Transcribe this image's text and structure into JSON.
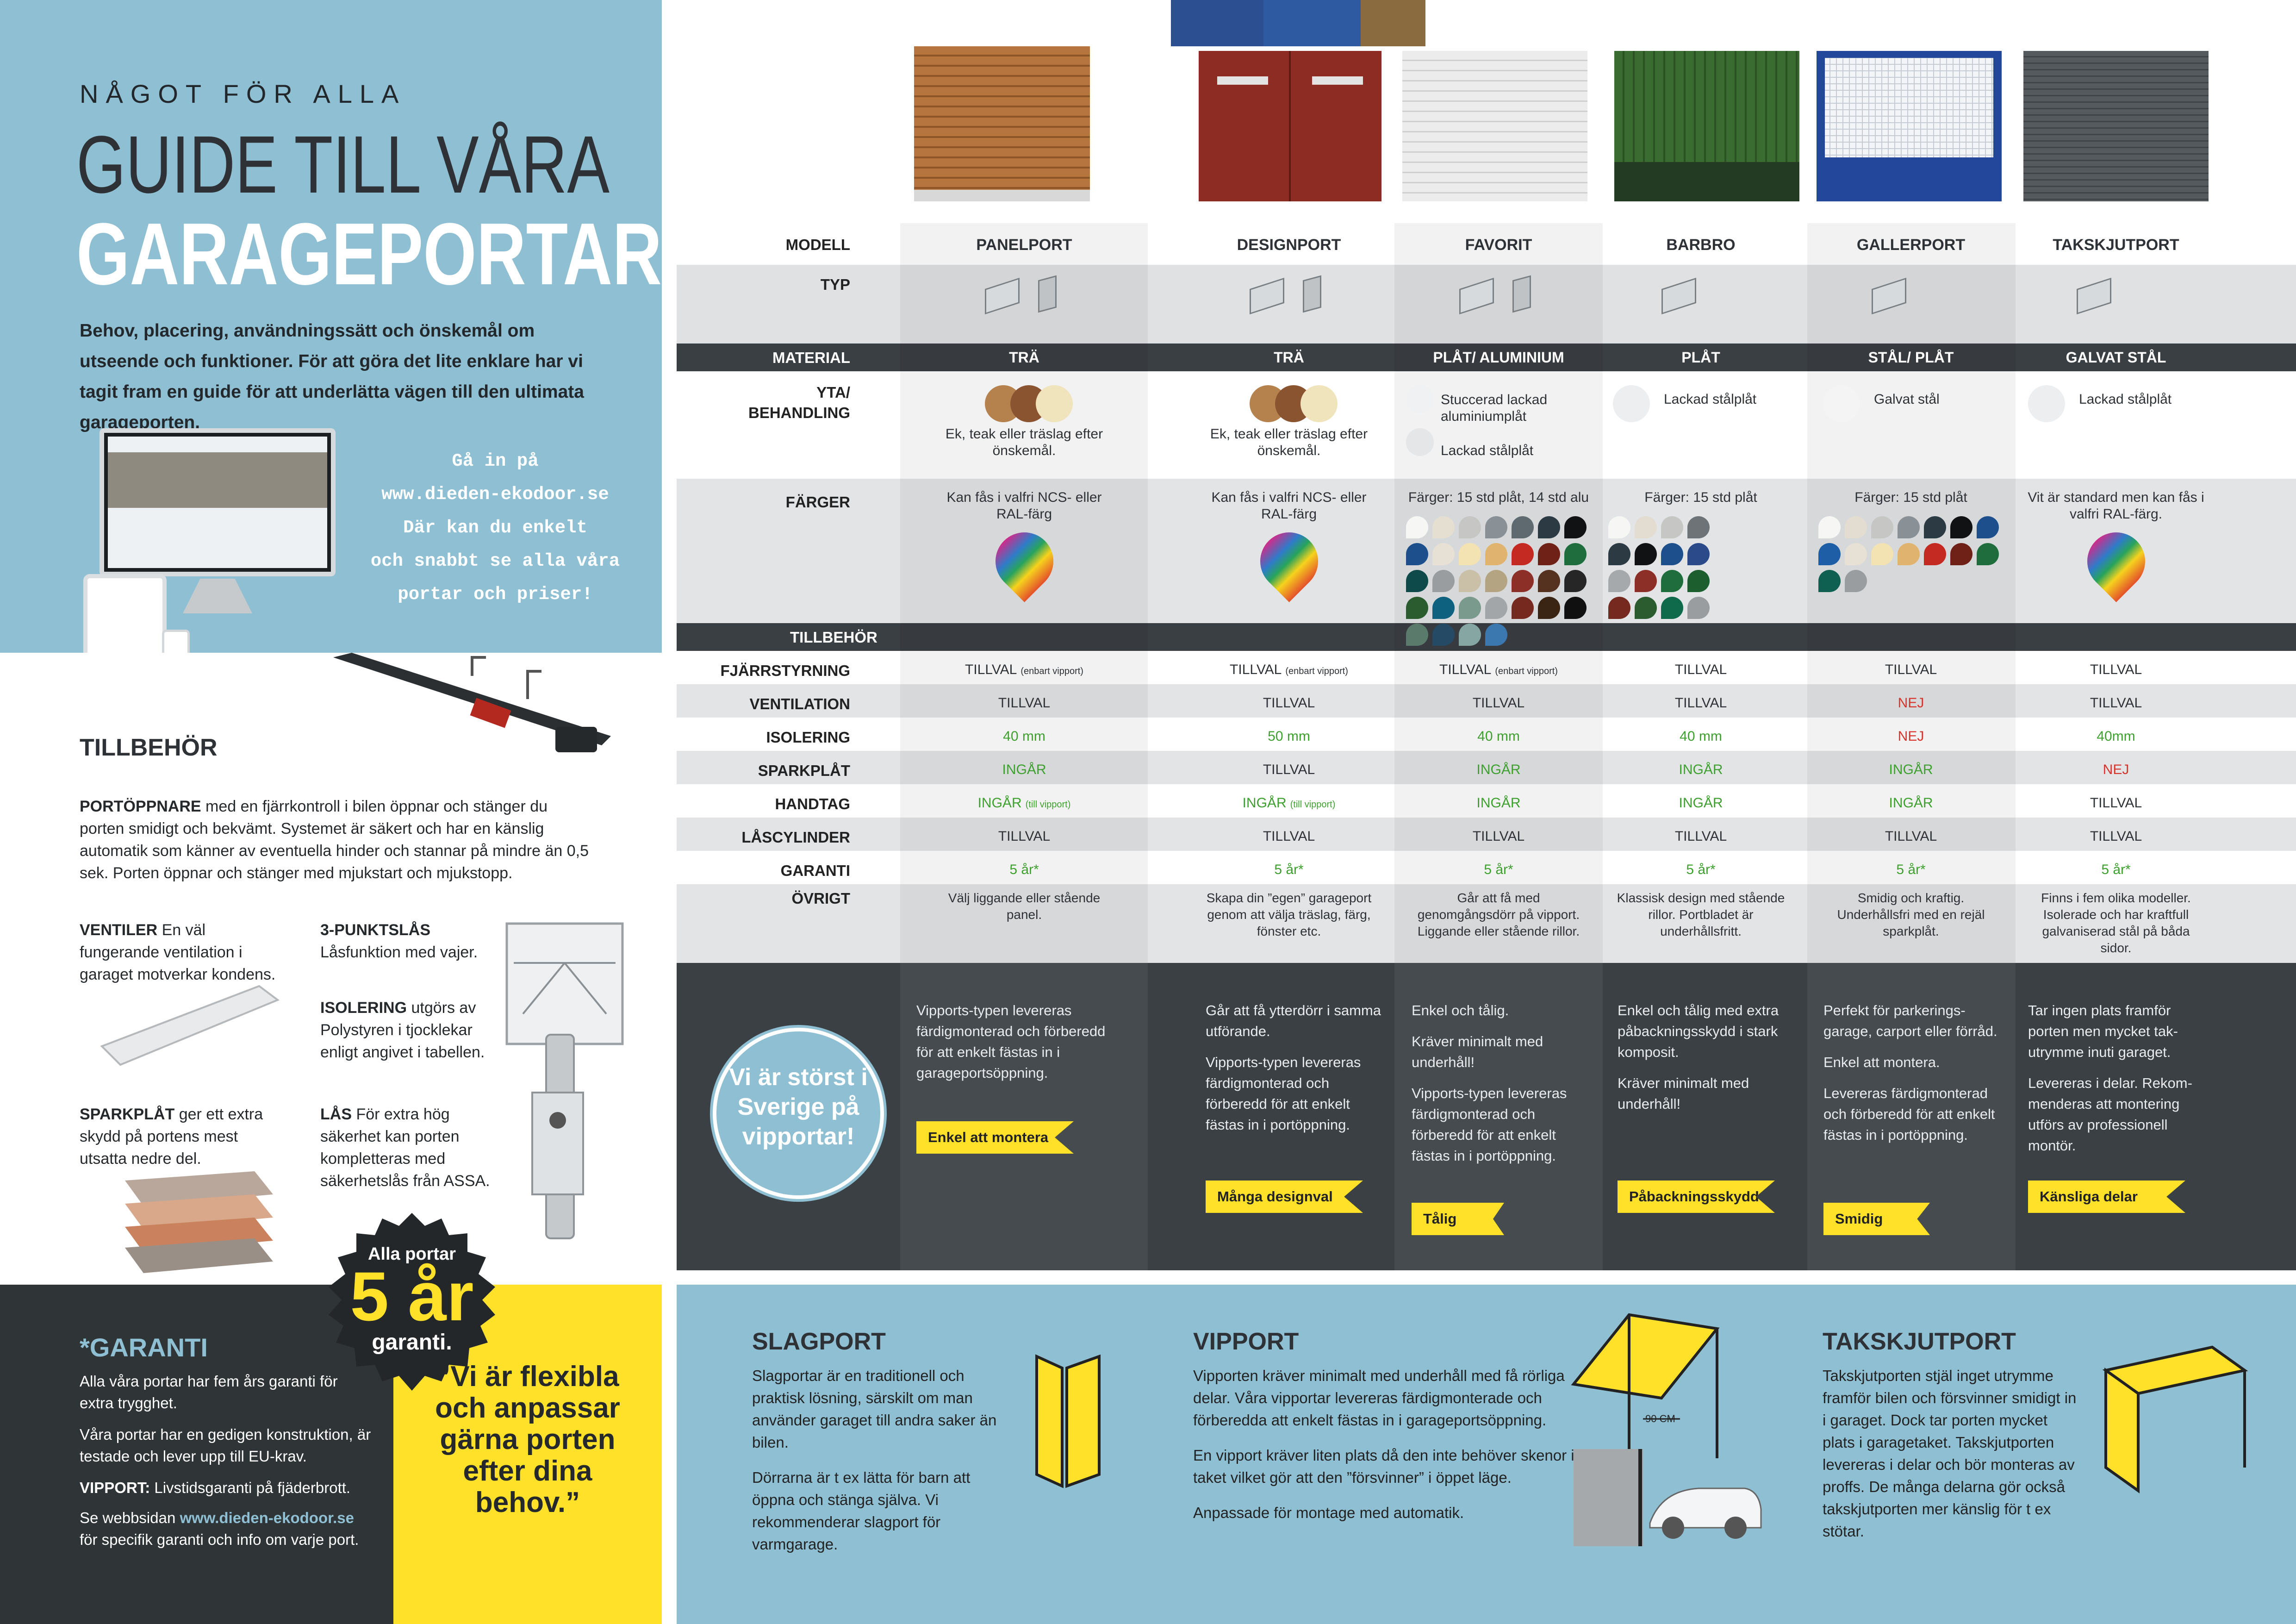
{
  "header": {
    "kicker": "NÅGOT FÖR ALLA",
    "title_line1": "GUIDE TILL VÅRA",
    "title_line2": "GARAGEPORTAR",
    "intro": "Behov, placering, användningssätt och önskemål om utseende och funktioner. För att göra det lite enklare har vi tagit fram en guide för att underlätta vägen till den ultimata garageporten."
  },
  "web_promo": {
    "line1": "Gå in på",
    "line2": "www.dieden-ekodoor.se",
    "line3": "Där kan du enkelt",
    "line4": "och snabbt se alla våra",
    "line5": "portar och priser!"
  },
  "accessories": {
    "heading": "TILLBEHÖR",
    "opener_bold": "PORTÖPPNARE",
    "opener_text": " med en fjärrkontroll i bilen öppnar och stänger du porten smidigt och bekvämt. Systemet är säkert och har en känslig automatik som känner av eventuella hinder och stannar på mindre än 0,5 sek. Porten öppnar och stänger med mjukstart och mjukstopp.",
    "vent_bold": "VENTILER",
    "vent_text": " En väl fungerande ventilation i garaget motverkar kondens.",
    "lock3_bold": "3-PUNKTSLÅS",
    "lock3_text": "Låsfunktion med vajer.",
    "insul_bold": "ISOLERING",
    "insul_text": " utgörs av Polystyren i tjocklekar enligt angivet i tabellen.",
    "kick_bold": "SPARKPLÅT",
    "kick_text": " ger ett extra skydd på portens mest utsatta nedre del.",
    "lock_bold": "LÅS",
    "lock_text": " För extra hög säkerhet kan porten kompletteras med säkerhetslås från ASSA."
  },
  "badge": {
    "line1": "Alla portar",
    "line2": "5 år",
    "line3": "garanti."
  },
  "warranty": {
    "heading": "*GARANTI",
    "p1": "Alla våra portar har fem års garanti för extra trygghet.",
    "p2": "Våra portar har en gedigen konstruktion, är testade och lever upp till EU-krav.",
    "p3_bold": "VIPPORT:",
    "p3": " Livstidsgaranti på fjäderbrott.",
    "p4a": "Se webbsidan ",
    "p4_link": "www.dieden-ekodoor.se",
    "p4b": " för specifik garanti och info om varje port."
  },
  "quote": "”Vi är flexibla och anpassar gärna porten efter dina behov.”",
  "table": {
    "labels": {
      "model": "MODELL",
      "type": "TYP",
      "material": "MATERIAL",
      "surface1": "YTA/",
      "surface2": "BEHANDLING",
      "colors": "FÄRGER",
      "accessories": "TILLBEHÖR",
      "remote": "FJÄRRSTYRNING",
      "ventilation": "VENTILATION",
      "insulation": "ISOLERING",
      "kickplate": "SPARKPLÅT",
      "handle": "HANDTAG",
      "cylinder": "LÅSCYLINDER",
      "warranty": "GARANTI",
      "other": "ÖVRIGT"
    },
    "columns": [
      {
        "model": "PANELPORT",
        "material": "TRÄ",
        "surface": "Ek, teak eller träslag efter önskemål.",
        "colors": "Kan fås i valfri NCS- eller RAL-färg",
        "remote": "TILLVAL",
        "remote_note": "(enbart vipport)",
        "ventilation": "TILLVAL",
        "insulation": "40 mm",
        "kickplate": "INGÅR",
        "handle": "INGÅR",
        "handle_note": "(till vipport)",
        "cylinder": "TILLVAL",
        "warranty": "5 år*",
        "other": "Välj liggande eller stående panel.",
        "desc": [
          "Vipports-typen levereras färdigmonterad och förberedd för att enkelt fästas in i garageportsöppning."
        ],
        "tag": "Enkel att montera"
      },
      {
        "model": "DESIGNPORT",
        "material": "TRÄ",
        "surface": "Ek, teak eller träslag efter önskemål.",
        "colors": "Kan fås i valfri NCS- eller RAL-färg",
        "remote": "TILLVAL",
        "remote_note": "(enbart vipport)",
        "ventilation": "TILLVAL",
        "insulation": "50 mm",
        "kickplate": "TILLVAL",
        "handle": "INGÅR",
        "handle_note": "(till vipport)",
        "cylinder": "TILLVAL",
        "warranty": "5 år*",
        "other": "Skapa din ”egen” garageport genom att välja träslag, färg, fönster etc.",
        "desc": [
          "Går att få ytterdörr i samma utförande.",
          "Vipports-typen levereras färdigmonterad och förberedd för att enkelt fästas in i portöppning."
        ],
        "tag": "Många designval"
      },
      {
        "model": "FAVORIT",
        "material": "PLÅT/ ALUMINIUM",
        "surface": "Stuccerad lackad aluminiumplåt",
        "surface2": "Lackad stålplåt",
        "colors": "Färger: 15 std plåt, 14 std alu",
        "remote": "TILLVAL",
        "remote_note": "(enbart vipport)",
        "ventilation": "TILLVAL",
        "insulation": "40 mm",
        "kickplate": "INGÅR",
        "handle": "INGÅR",
        "handle_note": "",
        "cylinder": "TILLVAL",
        "warranty": "5 år*",
        "other": "Går att få med genomgångsdörr på vipport. Liggande eller stående rillor.",
        "desc": [
          "Enkel och tålig.",
          "Kräver minimalt med underhåll!",
          "Vipports-typen levereras färdigmonterad och förberedd för att enkelt fästas in i portöppning."
        ],
        "tag": "Tålig"
      },
      {
        "model": "BARBRO",
        "material": "PLÅT",
        "surface": "Lackad stålplåt",
        "colors": "Färger: 15 std plåt",
        "remote": "TILLVAL",
        "remote_note": "",
        "ventilation": "TILLVAL",
        "insulation": "40 mm",
        "kickplate": "INGÅR",
        "handle": "INGÅR",
        "handle_note": "",
        "cylinder": "TILLVAL",
        "warranty": "5 år*",
        "other": "Klassisk design med stående rillor. Portbladet är underhållsfritt.",
        "desc": [
          "Enkel och tålig med extra påbackningsskydd i stark komposit.",
          "Kräver minimalt med underhåll!"
        ],
        "tag": "Påbackningsskydd"
      },
      {
        "model": "GALLERPORT",
        "material": "STÅL/ PLÅT",
        "surface": "Galvat stål",
        "colors": "Färger: 15 std plåt",
        "remote": "TILLVAL",
        "remote_note": "",
        "ventilation": "NEJ",
        "insulation": "NEJ",
        "kickplate": "INGÅR",
        "handle": "INGÅR",
        "handle_note": "",
        "cylinder": "TILLVAL",
        "warranty": "5 år*",
        "other": "Smidig och kraftig. Underhållsfri med en rejäl sparkplåt.",
        "desc": [
          "Perfekt för parkerings-garage, carport eller förråd.",
          "Enkel att montera.",
          "Levereras färdigmonterad och förberedd för att enkelt fästas in i portöppning."
        ],
        "tag": "Smidig"
      },
      {
        "model": "TAKSKJUTPORT",
        "material": "GALVAT STÅL",
        "surface": "Lackad stålplåt",
        "colors": "Vit är standard men kan fås i valfri RAL-färg.",
        "remote": "TILLVAL",
        "remote_note": "",
        "ventilation": "TILLVAL",
        "insulation": "40mm",
        "kickplate": "NEJ",
        "handle": "TILLVAL",
        "handle_note": "",
        "cylinder": "TILLVAL",
        "warranty": "5 år*",
        "other": "Finns i fem olika modeller. Isolerade och har kraftfull galvaniserad stål på båda sidor.",
        "desc": [
          "Tar ingen plats framför porten men mycket tak-utrymme inuti garaget.",
          "Levereras i delar. Rekom-menderas att montering utförs av professionell montör."
        ],
        "tag": "Känsliga delar"
      }
    ]
  },
  "circle": "Vi är störst i Sverige på vipportar!",
  "types": [
    {
      "heading": "SLAGPORT",
      "p": [
        "Slagportar är en traditionell och praktisk lösning, särskilt om man använder garaget till andra saker än bilen.",
        "Dörrarna är t ex lätta för barn att öppna och stänga själva. Vi rekommenderar slagport för varmgarage."
      ]
    },
    {
      "heading": "VIPPORT",
      "p": [
        "Vipporten kräver minimalt med underhåll med få rörliga delar. Våra vipportar levereras färdigmonterade och förberedda att enkelt fästas in i garageportsöppning.",
        "En vipport kräver liten plats då den inte behöver skenor i taket vilket gör att den ”försvinner” i öppet läge.",
        "Anpassade för montage med automatik."
      ],
      "dim": "90 CM"
    },
    {
      "heading": "TAKSKJUTPORT",
      "p": [
        "Takskjutporten stjäl inget utrymme framför bilen och försvinner smidigt in i garaget. Dock tar porten mycket plats i garagetaket. Takskjutporten levereras i delar och bör monteras av proffs. De många delarna gör också takskjutporten mer känslig för t ex stötar."
      ]
    }
  ],
  "colors": {
    "blue": "#8fbfd2",
    "dark": "#2f3437",
    "yellow": "#ffe12a",
    "green": "#3ea02e",
    "red": "#d6332c"
  }
}
